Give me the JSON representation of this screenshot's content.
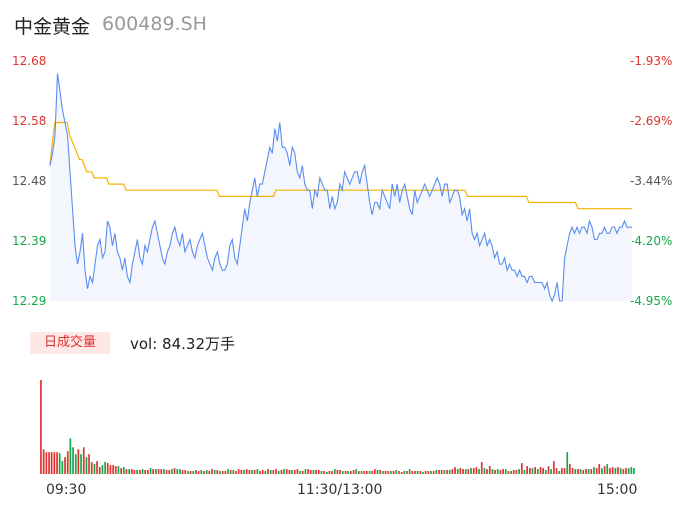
{
  "header": {
    "name": "中金黄金",
    "code": "600489.SH"
  },
  "volume_tab": {
    "label": "日成交量",
    "text": "vol: 84.32万手"
  },
  "colors": {
    "price": "#5b8def",
    "avg": "#f5b300",
    "up": "#e0322f",
    "down": "#15a74b"
  },
  "chart_data": [
    {
      "type": "line",
      "y_left_ticks": [
        "12.68",
        "12.58",
        "12.48",
        "12.39",
        "12.29"
      ],
      "y_left_colors": [
        "#e0322f",
        "#e0322f",
        "#555555",
        "#15a74b",
        "#15a74b"
      ],
      "y_right_ticks": [
        "-1.93%",
        "-2.69%",
        "-3.44%",
        "-4.20%",
        "-4.95%"
      ],
      "y_right_colors": [
        "#e0322f",
        "#e0322f",
        "#555555",
        "#15a74b",
        "#15a74b"
      ],
      "ylim": [
        12.29,
        12.68
      ],
      "x_ticks": [
        "09:30",
        "11:30/13:00",
        "15:00"
      ],
      "series": [
        {
          "values": [
            12.51,
            12.53,
            12.56,
            12.66,
            12.63,
            12.6,
            12.58,
            12.56,
            12.5,
            12.44,
            12.38,
            12.35,
            12.37,
            12.4,
            12.34,
            12.31,
            12.33,
            12.32,
            12.35,
            12.38,
            12.39,
            12.36,
            12.37,
            12.42,
            12.41,
            12.38,
            12.4,
            12.37,
            12.36,
            12.34,
            12.36,
            12.33,
            12.32,
            12.35,
            12.37,
            12.39,
            12.36,
            12.35,
            12.38,
            12.37,
            12.39,
            12.41,
            12.42,
            12.4,
            12.38,
            12.36,
            12.35,
            12.37,
            12.38,
            12.4,
            12.41,
            12.39,
            12.38,
            12.4,
            12.37,
            12.38,
            12.39,
            12.37,
            12.36,
            12.38,
            12.39,
            12.4,
            12.38,
            12.36,
            12.35,
            12.34,
            12.36,
            12.37,
            12.35,
            12.34,
            12.34,
            12.35,
            12.38,
            12.39,
            12.36,
            12.35,
            12.38,
            12.41,
            12.44,
            12.42,
            12.45,
            12.47,
            12.49,
            12.46,
            12.48,
            12.48,
            12.5,
            12.52,
            12.54,
            12.53,
            12.57,
            12.55,
            12.58,
            12.54,
            12.54,
            12.53,
            12.51,
            12.54,
            12.53,
            12.5,
            12.49,
            12.51,
            12.48,
            12.47,
            12.47,
            12.44,
            12.47,
            12.46,
            12.49,
            12.48,
            12.47,
            12.47,
            12.44,
            12.46,
            12.44,
            12.45,
            12.48,
            12.47,
            12.5,
            12.49,
            12.48,
            12.49,
            12.5,
            12.5,
            12.48,
            12.5,
            12.51,
            12.48,
            12.45,
            12.43,
            12.45,
            12.45,
            12.44,
            12.47,
            12.46,
            12.45,
            12.44,
            12.48,
            12.46,
            12.48,
            12.45,
            12.47,
            12.48,
            12.46,
            12.44,
            12.43,
            12.47,
            12.45,
            12.46,
            12.47,
            12.48,
            12.47,
            12.46,
            12.47,
            12.48,
            12.49,
            12.48,
            12.46,
            12.48,
            12.48,
            12.45,
            12.46,
            12.47,
            12.47,
            12.46,
            12.43,
            12.44,
            12.42,
            12.44,
            12.4,
            12.39,
            12.4,
            12.38,
            12.39,
            12.4,
            12.38,
            12.39,
            12.38,
            12.36,
            12.37,
            12.35,
            12.35,
            12.36,
            12.34,
            12.35,
            12.34,
            12.34,
            12.33,
            12.34,
            12.33,
            12.33,
            12.32,
            12.33,
            12.33,
            12.32,
            12.32,
            12.32,
            12.32,
            12.31,
            12.32,
            12.3,
            12.29,
            12.3,
            12.32,
            12.29,
            12.29,
            12.36,
            12.38,
            12.4,
            12.41,
            12.4,
            12.41,
            12.4,
            12.41,
            12.41,
            12.4,
            12.42,
            12.41,
            12.39,
            12.39,
            12.4,
            12.4,
            12.41,
            12.4,
            12.4,
            12.41,
            12.41,
            12.4,
            12.41,
            12.41,
            12.42,
            12.41,
            12.41,
            12.41
          ]
        },
        {
          "values": [
            12.51,
            12.55,
            12.58,
            12.58,
            12.58,
            12.58,
            12.58,
            12.58,
            12.56,
            12.55,
            12.54,
            12.53,
            12.52,
            12.52,
            12.51,
            12.5,
            12.5,
            12.5,
            12.49,
            12.49,
            12.49,
            12.49,
            12.49,
            12.49,
            12.48,
            12.48,
            12.48,
            12.48,
            12.48,
            12.48,
            12.48,
            12.47,
            12.47,
            12.47,
            12.47,
            12.47,
            12.47,
            12.47,
            12.47,
            12.47,
            12.47,
            12.47,
            12.47,
            12.47,
            12.47,
            12.47,
            12.47,
            12.47,
            12.47,
            12.47,
            12.47,
            12.47,
            12.47,
            12.47,
            12.47,
            12.47,
            12.47,
            12.47,
            12.47,
            12.47,
            12.47,
            12.47,
            12.47,
            12.47,
            12.47,
            12.47,
            12.47,
            12.47,
            12.47,
            12.46,
            12.46,
            12.46,
            12.46,
            12.46,
            12.46,
            12.46,
            12.46,
            12.46,
            12.46,
            12.46,
            12.46,
            12.46,
            12.46,
            12.46,
            12.46,
            12.46,
            12.46,
            12.46,
            12.46,
            12.46,
            12.46,
            12.46,
            12.47,
            12.47,
            12.47,
            12.47,
            12.47,
            12.47,
            12.47,
            12.47,
            12.47,
            12.47,
            12.47,
            12.47,
            12.47,
            12.47,
            12.47,
            12.47,
            12.47,
            12.47,
            12.47,
            12.47,
            12.47,
            12.47,
            12.47,
            12.47,
            12.47,
            12.47,
            12.47,
            12.47,
            12.47,
            12.47,
            12.47,
            12.47,
            12.47,
            12.47,
            12.47,
            12.47,
            12.47,
            12.47,
            12.47,
            12.47,
            12.47,
            12.47,
            12.47,
            12.47,
            12.47,
            12.47,
            12.47,
            12.47,
            12.47,
            12.47,
            12.47,
            12.47,
            12.47,
            12.47,
            12.47,
            12.47,
            12.47,
            12.47,
            12.47,
            12.47,
            12.47,
            12.47,
            12.47,
            12.47,
            12.47,
            12.47,
            12.47,
            12.47,
            12.47,
            12.47,
            12.47,
            12.47,
            12.47,
            12.47,
            12.47,
            12.47,
            12.47,
            12.47,
            12.46,
            12.46,
            12.46,
            12.46,
            12.46,
            12.46,
            12.46,
            12.46,
            12.46,
            12.46,
            12.46,
            12.46,
            12.46,
            12.46,
            12.46,
            12.46,
            12.46,
            12.46,
            12.46,
            12.46,
            12.46,
            12.46,
            12.46,
            12.46,
            12.46,
            12.45,
            12.45,
            12.45,
            12.45,
            12.45,
            12.45,
            12.45,
            12.45,
            12.45,
            12.45,
            12.45,
            12.45,
            12.45,
            12.45,
            12.45,
            12.45,
            12.45,
            12.45,
            12.45,
            12.45,
            12.44,
            12.44,
            12.44,
            12.44,
            12.44,
            12.44,
            12.44,
            12.44,
            12.44,
            12.44,
            12.44,
            12.44,
            12.44,
            12.44,
            12.44,
            12.44,
            12.44,
            12.44,
            12.44,
            12.44,
            12.44,
            12.44,
            12.44
          ]
        }
      ]
    },
    {
      "type": "bar",
      "ylim": [
        0,
        95
      ],
      "values": [
        95,
        25,
        22,
        22,
        22,
        22,
        22,
        21,
        13,
        17,
        23,
        36,
        27,
        20,
        25,
        20,
        27,
        17,
        20,
        12,
        10,
        13,
        7,
        9,
        12,
        11,
        9,
        9,
        8,
        8,
        6,
        7,
        5,
        5,
        5,
        4,
        4,
        4,
        5,
        4,
        4,
        6,
        5,
        5,
        5,
        5,
        5,
        4,
        4,
        5,
        6,
        5,
        5,
        4,
        4,
        3,
        3,
        3,
        4,
        3,
        4,
        3,
        4,
        3,
        5,
        4,
        4,
        3,
        3,
        3,
        5,
        4,
        4,
        3,
        5,
        4,
        4,
        5,
        4,
        4,
        4,
        5,
        3,
        4,
        3,
        5,
        4,
        4,
        5,
        3,
        4,
        5,
        5,
        4,
        4,
        4,
        5,
        3,
        3,
        5,
        5,
        4,
        4,
        4,
        4,
        3,
        3,
        2,
        3,
        3,
        5,
        4,
        4,
        3,
        3,
        3,
        3,
        4,
        5,
        3,
        3,
        3,
        3,
        3,
        3,
        5,
        4,
        4,
        3,
        3,
        3,
        3,
        3,
        4,
        3,
        2,
        3,
        3,
        5,
        3,
        3,
        3,
        3,
        2,
        3,
        3,
        3,
        3,
        4,
        4,
        4,
        4,
        4,
        4,
        5,
        7,
        5,
        6,
        5,
        5,
        5,
        6,
        6,
        7,
        5,
        12,
        6,
        5,
        8,
        5,
        4,
        5,
        4,
        5,
        5,
        3,
        3,
        4,
        4,
        5,
        11,
        4,
        8,
        6,
        6,
        7,
        5,
        7,
        6,
        4,
        8,
        5,
        13,
        6,
        3,
        6,
        6,
        22,
        10,
        6,
        5,
        5,
        5,
        4,
        5,
        5,
        5,
        7,
        6,
        10,
        6,
        8,
        10,
        6,
        7,
        6,
        7,
        6,
        5,
        6,
        6,
        7,
        6
      ],
      "up": [
        1,
        1,
        1,
        1,
        1,
        1,
        1,
        0,
        0,
        1,
        1,
        0,
        0,
        0,
        1,
        0,
        1,
        0,
        1,
        1,
        0,
        1,
        1,
        0,
        0,
        1,
        1,
        1,
        1,
        0,
        1,
        0,
        1,
        0,
        1,
        1,
        0,
        1,
        0,
        1,
        1,
        0,
        1,
        0,
        1,
        1,
        0,
        1,
        1,
        0,
        1,
        0,
        0,
        1,
        1,
        0,
        1,
        0,
        1,
        1,
        0,
        1,
        0,
        1,
        1,
        0,
        1,
        0,
        1,
        1,
        0,
        1,
        0,
        1,
        1,
        1,
        0,
        1,
        1,
        0,
        1,
        0,
        1,
        1,
        0,
        1,
        0,
        1,
        1,
        0,
        1,
        0,
        1,
        1,
        0,
        1,
        1,
        0,
        1,
        0,
        1,
        1,
        0,
        1,
        1,
        0,
        1,
        0,
        1,
        1,
        0,
        1,
        1,
        0,
        1,
        0,
        1,
        1,
        0,
        1,
        0,
        1,
        1,
        0,
        1,
        1,
        0,
        1,
        0,
        1,
        1,
        0,
        1,
        0,
        1,
        1,
        0,
        1,
        0,
        1,
        1,
        0,
        1,
        0,
        1,
        1,
        0,
        1,
        0,
        1,
        1,
        0,
        1,
        0,
        1,
        1,
        0,
        1,
        1,
        0,
        1,
        0,
        1,
        1,
        0,
        1,
        0,
        1,
        1,
        0,
        1,
        0,
        1,
        1,
        0,
        1,
        0,
        1,
        1,
        0,
        1,
        0,
        1,
        1,
        0,
        1,
        0,
        1,
        1,
        0,
        1,
        0,
        1,
        1,
        0,
        1,
        1,
        0,
        1,
        1,
        0,
        1,
        0,
        1,
        1,
        0,
        1,
        0,
        1,
        1,
        0,
        1,
        0,
        1,
        1,
        0,
        1,
        0,
        1,
        1,
        0,
        0
      ]
    }
  ]
}
